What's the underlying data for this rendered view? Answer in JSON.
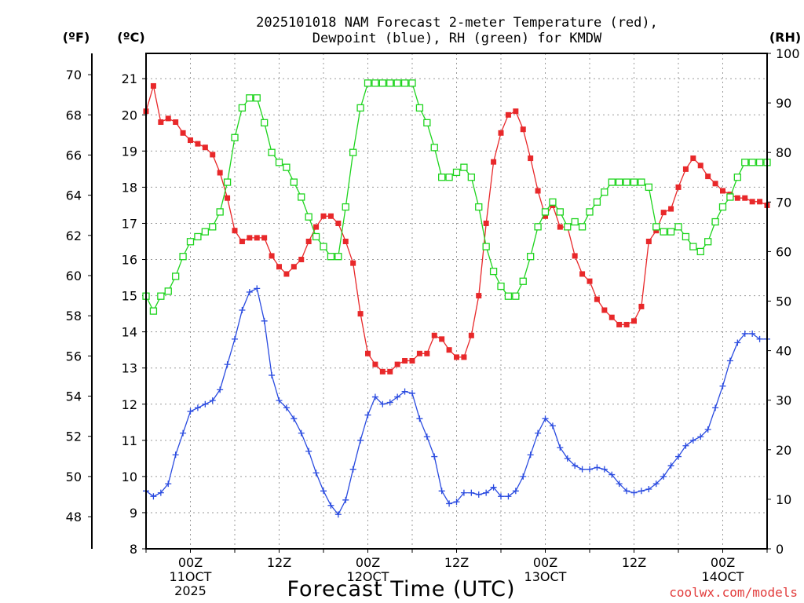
{
  "title_line1": "2025101018 NAM Forecast 2-meter Temperature (red),",
  "title_line2": "Dewpoint (blue), RH (green) for KMDW",
  "units": {
    "fahrenheit": "(ºF)",
    "celsius": "(ºC)",
    "rh": "(RH)"
  },
  "xlabel": "Forecast Time (UTC)",
  "credit": "coolwx.com/models",
  "colors": {
    "temperature": "#e8282a",
    "dewpoint": "#2a4be0",
    "rh": "#1ed41e",
    "credit": "#e23b3b"
  },
  "chart_data": {
    "type": "line",
    "x_unit": "forecast hour (hours after 2025-10-10 18Z)",
    "x_range": [
      0,
      84
    ],
    "fahrenheit_ticks": [
      "48",
      "50",
      "52",
      "54",
      "56",
      "58",
      "60",
      "62",
      "64",
      "66",
      "68",
      "70"
    ],
    "celsius_ticks": [
      "8",
      "9",
      "10",
      "11",
      "12",
      "13",
      "14",
      "15",
      "16",
      "17",
      "18",
      "19",
      "20",
      "21"
    ],
    "rh_ticks": [
      "0",
      "10",
      "20",
      "30",
      "40",
      "50",
      "60",
      "70",
      "80",
      "90",
      "100"
    ],
    "celsius_range": [
      8,
      21.7
    ],
    "rh_range": [
      0,
      100
    ],
    "x_ticks": [
      {
        "hour": 6,
        "lines": [
          "00Z",
          "11OCT",
          "2025"
        ]
      },
      {
        "hour": 18,
        "lines": [
          "12Z"
        ]
      },
      {
        "hour": 30,
        "lines": [
          "00Z",
          "12OCT"
        ]
      },
      {
        "hour": 42,
        "lines": [
          "12Z"
        ]
      },
      {
        "hour": 54,
        "lines": [
          "00Z",
          "13OCT"
        ]
      },
      {
        "hour": 66,
        "lines": [
          "12Z"
        ]
      },
      {
        "hour": 78,
        "lines": [
          "00Z",
          "14OCT"
        ]
      }
    ],
    "series": [
      {
        "name": "Temperature (red)",
        "unit": "C",
        "marker": "filled-square",
        "x": [
          0,
          1,
          2,
          3,
          4,
          5,
          6,
          7,
          8,
          9,
          10,
          11,
          12,
          13,
          14,
          15,
          16,
          17,
          18,
          19,
          20,
          21,
          22,
          23,
          24,
          25,
          26,
          27,
          28,
          29,
          30,
          31,
          32,
          33,
          34,
          35,
          36,
          37,
          38,
          39,
          40,
          41,
          42,
          43,
          44,
          45,
          46,
          47,
          48,
          49,
          50,
          51,
          52,
          53,
          54,
          55,
          56,
          57,
          58,
          59,
          60,
          61,
          62,
          63,
          64,
          65,
          66,
          67,
          68,
          69,
          70,
          71,
          72,
          73,
          74,
          75,
          76,
          77,
          78,
          79,
          80,
          81,
          82,
          83,
          84
        ],
        "values": [
          20.1,
          20.8,
          19.8,
          19.9,
          19.8,
          19.5,
          19.3,
          19.2,
          19.1,
          18.9,
          18.4,
          17.7,
          16.8,
          16.5,
          16.6,
          16.6,
          16.6,
          16.1,
          15.8,
          15.6,
          15.8,
          16.0,
          16.5,
          16.9,
          17.2,
          17.2,
          17.0,
          16.5,
          15.9,
          14.5,
          13.4,
          13.1,
          12.9,
          12.9,
          13.1,
          13.2,
          13.2,
          13.4,
          13.4,
          13.9,
          13.8,
          13.5,
          13.3,
          13.3,
          13.9,
          15.0,
          17.0,
          18.7,
          19.5,
          20.0,
          20.1,
          19.6,
          18.8,
          17.9,
          17.2,
          17.5,
          16.9,
          16.9,
          16.1,
          15.6,
          15.4,
          14.9,
          14.6,
          14.4,
          14.2,
          14.2,
          14.3,
          14.7,
          16.5,
          16.8,
          17.3,
          17.4,
          18.0,
          18.5,
          18.8,
          18.6,
          18.3,
          18.1,
          17.9,
          17.8,
          17.7,
          17.7,
          17.6,
          17.6,
          17.5
        ]
      },
      {
        "name": "Dewpoint (blue)",
        "unit": "C",
        "marker": "plus",
        "x": [
          0,
          1,
          2,
          3,
          4,
          5,
          6,
          7,
          8,
          9,
          10,
          11,
          12,
          13,
          14,
          15,
          16,
          17,
          18,
          19,
          20,
          21,
          22,
          23,
          24,
          25,
          26,
          27,
          28,
          29,
          30,
          31,
          32,
          33,
          34,
          35,
          36,
          37,
          38,
          39,
          40,
          41,
          42,
          43,
          44,
          45,
          46,
          47,
          48,
          49,
          50,
          51,
          52,
          53,
          54,
          55,
          56,
          57,
          58,
          59,
          60,
          61,
          62,
          63,
          64,
          65,
          66,
          67,
          68,
          69,
          70,
          71,
          72,
          73,
          74,
          75,
          76,
          77,
          78,
          79,
          80,
          81,
          82,
          83,
          84
        ],
        "values": [
          9.6,
          9.45,
          9.55,
          9.8,
          10.6,
          11.2,
          11.8,
          11.9,
          12.0,
          12.1,
          12.4,
          13.1,
          13.8,
          14.6,
          15.1,
          15.2,
          14.3,
          12.8,
          12.1,
          11.9,
          11.6,
          11.2,
          10.7,
          10.1,
          9.6,
          9.2,
          8.95,
          9.35,
          10.2,
          11.0,
          11.7,
          12.2,
          12.0,
          12.05,
          12.2,
          12.35,
          12.3,
          11.6,
          11.1,
          10.55,
          9.6,
          9.25,
          9.3,
          9.55,
          9.55,
          9.5,
          9.55,
          9.7,
          9.45,
          9.45,
          9.6,
          10.0,
          10.6,
          11.2,
          11.6,
          11.4,
          10.8,
          10.5,
          10.3,
          10.2,
          10.2,
          10.25,
          10.2,
          10.05,
          9.8,
          9.6,
          9.55,
          9.6,
          9.65,
          9.8,
          10.0,
          10.3,
          10.55,
          10.85,
          11.0,
          11.1,
          11.3,
          11.9,
          12.5,
          13.2,
          13.7,
          13.95,
          13.95,
          13.8,
          13.8
        ]
      },
      {
        "name": "RH (green)",
        "unit": "%",
        "marker": "open-square",
        "x": [
          0,
          1,
          2,
          3,
          4,
          5,
          6,
          7,
          8,
          9,
          10,
          11,
          12,
          13,
          14,
          15,
          16,
          17,
          18,
          19,
          20,
          21,
          22,
          23,
          24,
          25,
          26,
          27,
          28,
          29,
          30,
          31,
          32,
          33,
          34,
          35,
          36,
          37,
          38,
          39,
          40,
          41,
          42,
          43,
          44,
          45,
          46,
          47,
          48,
          49,
          50,
          51,
          52,
          53,
          54,
          55,
          56,
          57,
          58,
          59,
          60,
          61,
          62,
          63,
          64,
          65,
          66,
          67,
          68,
          69,
          70,
          71,
          72,
          73,
          74,
          75,
          76,
          77,
          78,
          79,
          80,
          81,
          82,
          83,
          84
        ],
        "values": [
          51,
          48,
          51,
          52,
          55,
          59,
          62,
          63,
          64,
          65,
          68,
          74,
          83,
          89,
          91,
          91,
          86,
          80,
          78,
          77,
          74,
          71,
          67,
          63,
          61,
          59,
          59,
          69,
          80,
          89,
          94,
          94,
          94,
          94,
          94,
          94,
          94,
          89,
          86,
          81,
          75,
          75,
          76,
          77,
          75,
          69,
          61,
          56,
          53,
          51,
          51,
          54,
          59,
          65,
          68,
          70,
          68,
          65,
          66,
          65,
          68,
          70,
          72,
          74,
          74,
          74,
          74,
          74,
          73,
          65,
          64,
          64,
          65,
          63,
          61,
          60,
          62,
          66,
          69,
          71,
          75,
          78,
          78,
          78,
          78
        ]
      }
    ]
  }
}
